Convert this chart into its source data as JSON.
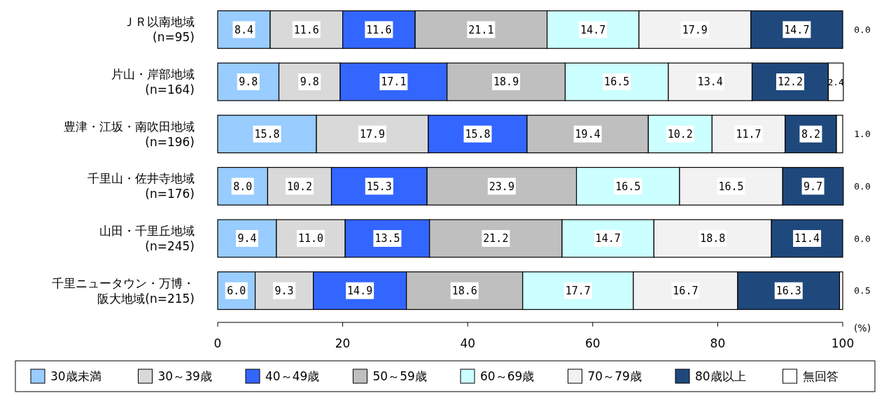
{
  "chart_data": {
    "type": "bar",
    "orientation": "horizontal",
    "stacked": true,
    "categories": [
      "ＪＲ以南地域 (n=95)",
      "片山・岸部地域 (n=164)",
      "豊津・江坂・南吹田地域 (n=196)",
      "千里山・佐井寺地域 (n=176)",
      "山田・千里丘地域 (n=245)",
      "千里ニュータウン・万博・阪大地域(n=215)"
    ],
    "series": [
      {
        "name": "30歳未満",
        "color": "#99ccff",
        "values": [
          8.4,
          9.8,
          15.8,
          8.0,
          9.4,
          6.0
        ],
        "value_labels": [
          "8.4",
          "9.8",
          "15.8",
          "8.0",
          "9.4",
          "6.0"
        ]
      },
      {
        "name": "30～39歳",
        "color": "#d9d9d9",
        "values": [
          11.6,
          9.8,
          17.9,
          10.2,
          11.0,
          9.3
        ],
        "value_labels": [
          "11.6",
          "9.8",
          "17.9",
          "10.2",
          "11.0",
          "9.3"
        ]
      },
      {
        "name": "40～49歳",
        "color": "#3366ff",
        "values": [
          11.6,
          17.1,
          15.8,
          15.3,
          13.5,
          14.9
        ],
        "value_labels": [
          "11.6",
          "17.1",
          "15.8",
          "15.3",
          "13.5",
          "14.9"
        ]
      },
      {
        "name": "50～59歳",
        "color": "#bfbfbf",
        "values": [
          21.1,
          18.9,
          19.4,
          23.9,
          21.2,
          18.6
        ],
        "value_labels": [
          "21.1",
          "18.9",
          "19.4",
          "23.9",
          "21.2",
          "18.6"
        ]
      },
      {
        "name": "60～69歳",
        "color": "#ccffff",
        "values": [
          14.7,
          16.5,
          10.2,
          16.5,
          14.7,
          17.7
        ],
        "value_labels": [
          "14.7",
          "16.5",
          "10.2",
          "16.5",
          "14.7",
          "17.7"
        ]
      },
      {
        "name": "70～79歳",
        "color": "#f2f2f2",
        "values": [
          17.9,
          13.4,
          11.7,
          16.5,
          18.8,
          16.7
        ],
        "value_labels": [
          "17.9",
          "13.4",
          "11.7",
          "16.5",
          "18.8",
          "16.7"
        ]
      },
      {
        "name": "80歳以上",
        "color": "#1f497d",
        "values": [
          14.7,
          12.2,
          8.2,
          9.7,
          11.4,
          16.3
        ],
        "value_labels": [
          "14.7",
          "12.2",
          "8.2",
          "9.7",
          "11.4",
          "16.3"
        ]
      },
      {
        "name": "無回答",
        "color": "#ffffff",
        "values": [
          0.0,
          2.4,
          1.0,
          0.0,
          0.0,
          0.5
        ],
        "value_labels": [
          "0.0",
          "2.4",
          "1.0",
          "0.0",
          "0.0",
          "0.5"
        ]
      }
    ],
    "xlim": [
      0,
      100
    ],
    "xticks": [
      0,
      20,
      40,
      60,
      80,
      100
    ],
    "xlabel": "(%)",
    "legend": "bottom"
  }
}
